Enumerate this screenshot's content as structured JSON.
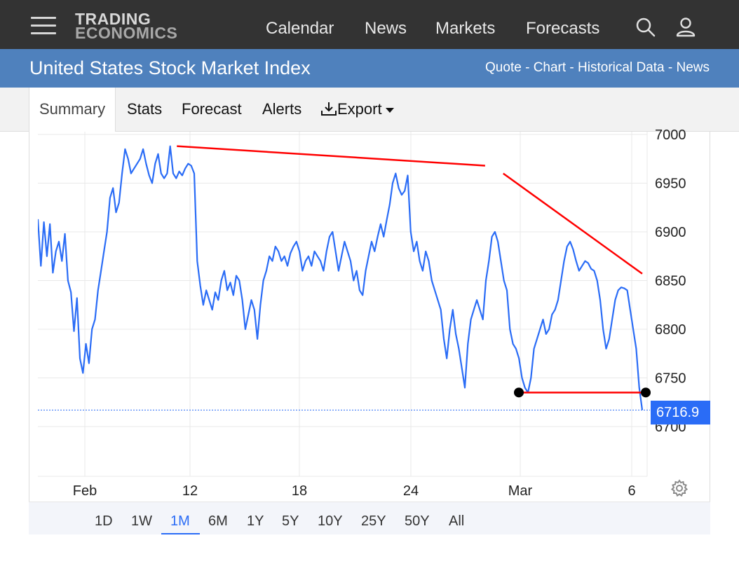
{
  "header": {
    "logo_line1": "TRADING",
    "logo_line2": "ECONOMICS",
    "nav": [
      "Calendar",
      "News",
      "Markets",
      "Forecasts"
    ],
    "icons": [
      "search-icon",
      "user-icon",
      "hamburger-menu-icon"
    ]
  },
  "titlebar": {
    "title": "United States Stock Market Index",
    "links": [
      "Quote",
      "Chart",
      "Historical Data",
      "News"
    ],
    "separator": " - "
  },
  "tabs": {
    "summary": "Summary",
    "stats": "Stats",
    "forecast": "Forecast",
    "alerts": "Alerts",
    "export": "Export"
  },
  "chart_data": {
    "type": "line",
    "x_labels": [
      "Feb",
      "12",
      "18",
      "24",
      "Mar",
      "6"
    ],
    "y_ticks": [
      6700,
      6750,
      6800,
      6850,
      6900,
      6950,
      7000
    ],
    "ylim": [
      6650,
      7005
    ],
    "last_price": "6716.9",
    "series_color": "#2a6cf6",
    "trendline_color": "#ff0000",
    "series": [
      {
        "values": [
          6913,
          6865,
          6910,
          6875,
          6908,
          6858,
          6880,
          6890,
          6870,
          6898,
          6850,
          6838,
          6798,
          6832,
          6770,
          6755,
          6785,
          6765,
          6800,
          6810,
          6840,
          6860,
          6880,
          6900,
          6935,
          6945,
          6920,
          6930,
          6960,
          6985,
          6975,
          6960,
          6965,
          6970,
          6975,
          6985,
          6970,
          6958,
          6950,
          6970,
          6980,
          6960,
          6955,
          6960,
          6988,
          6960,
          6955,
          6962,
          6958,
          6965,
          6970,
          6968,
          6960,
          6870,
          6845,
          6825,
          6840,
          6830,
          6820,
          6838,
          6830,
          6850,
          6860,
          6840,
          6848,
          6835,
          6855,
          6850,
          6830,
          6800,
          6815,
          6830,
          6820,
          6790,
          6825,
          6850,
          6860,
          6875,
          6870,
          6885,
          6880,
          6870,
          6875,
          6865,
          6878,
          6885,
          6890,
          6880,
          6860,
          6870,
          6875,
          6865,
          6880,
          6875,
          6870,
          6860,
          6880,
          6895,
          6900,
          6880,
          6860,
          6875,
          6890,
          6880,
          6870,
          6850,
          6860,
          6840,
          6835,
          6860,
          6875,
          6890,
          6880,
          6895,
          6908,
          6895,
          6912,
          6928,
          6950,
          6960,
          6945,
          6938,
          6942,
          6958,
          6900,
          6880,
          6890,
          6870,
          6860,
          6880,
          6870,
          6850,
          6840,
          6830,
          6820,
          6790,
          6770,
          6800,
          6820,
          6795,
          6780,
          6760,
          6740,
          6785,
          6810,
          6820,
          6830,
          6820,
          6810,
          6850,
          6870,
          6895,
          6900,
          6890,
          6870,
          6850,
          6840,
          6800,
          6785,
          6780,
          6770,
          6750,
          6740,
          6735,
          6750,
          6780,
          6790,
          6800,
          6810,
          6795,
          6800,
          6815,
          6820,
          6830,
          6850,
          6870,
          6885,
          6890,
          6882,
          6870,
          6860,
          6865,
          6870,
          6868,
          6862,
          6860,
          6850,
          6830,
          6800,
          6780,
          6790,
          6810,
          6830,
          6840,
          6843,
          6842,
          6840,
          6820,
          6800,
          6780,
          6740,
          6717
        ]
      }
    ],
    "trendlines": [
      {
        "x": [
          0.23,
          0.74
        ],
        "y": [
          6988,
          6968
        ]
      },
      {
        "x": [
          0.77,
          1.0
        ],
        "y": [
          6960,
          6857
        ]
      },
      {
        "x": [
          0.79,
          1.0
        ],
        "y": [
          6735,
          6735
        ]
      }
    ],
    "grid": true,
    "reference_line": 6717
  },
  "ranges": [
    "1D",
    "1W",
    "1M",
    "6M",
    "1Y",
    "5Y",
    "10Y",
    "25Y",
    "50Y",
    "All"
  ],
  "selected_range": "1M"
}
